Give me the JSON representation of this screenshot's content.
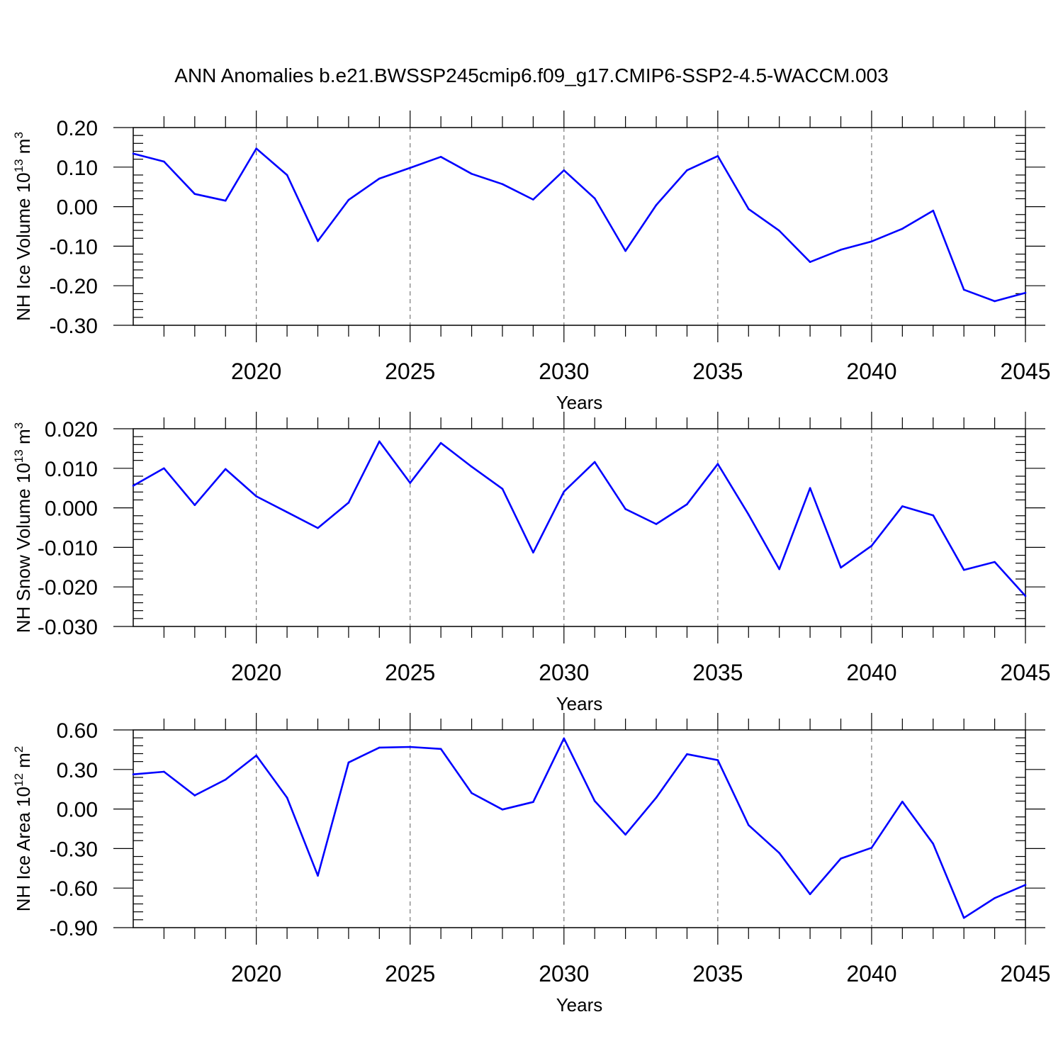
{
  "title": "ANN Anomalies b.e21.BWSSP245cmip6.f09_g17.CMIP6-SSP2-4.5-WACCM.003",
  "colors": {
    "line": "#0000ff",
    "grid": "#777777",
    "axis": "#000000"
  },
  "chart_data": [
    {
      "type": "line",
      "name": "ice-volume",
      "ylabel": "NH Ice Volume 10",
      "ylabel_exp": "13",
      "ylabel_unit": " m",
      "ylabel_unit_exp": "3",
      "xlabel": "Years",
      "xlim": [
        2016,
        2045
      ],
      "ylim": [
        -0.3,
        0.2
      ],
      "yticks": [
        0.2,
        0.1,
        0.0,
        -0.1,
        -0.2,
        -0.3
      ],
      "ytick_labels": [
        "0.20",
        "0.10",
        "0.00",
        "-0.10",
        "-0.20",
        "-0.30"
      ],
      "xticks": [
        2020,
        2025,
        2030,
        2035,
        2040,
        2045
      ],
      "xtick_labels": [
        "2020",
        "2025",
        "2030",
        "2035",
        "2040",
        "2045"
      ],
      "grid_x": true,
      "x": [
        2016,
        2017,
        2018,
        2019,
        2020,
        2021,
        2022,
        2023,
        2024,
        2025,
        2026,
        2027,
        2028,
        2029,
        2030,
        2031,
        2032,
        2033,
        2034,
        2035,
        2036,
        2037,
        2038,
        2039,
        2040,
        2041,
        2042,
        2043,
        2044,
        2045
      ],
      "values": [
        0.134,
        0.114,
        0.032,
        0.015,
        0.147,
        0.08,
        -0.087,
        0.017,
        0.071,
        0.098,
        0.126,
        0.083,
        0.057,
        0.018,
        0.092,
        0.021,
        -0.112,
        0.004,
        0.092,
        0.128,
        -0.006,
        -0.061,
        -0.14,
        -0.109,
        -0.088,
        -0.056,
        -0.01,
        -0.21,
        -0.239,
        -0.218
      ]
    },
    {
      "type": "line",
      "name": "snow-volume",
      "ylabel": "NH Snow Volume 10",
      "ylabel_exp": "13",
      "ylabel_unit": " m",
      "ylabel_unit_exp": "3",
      "xlabel": "Years",
      "xlim": [
        2016,
        2045
      ],
      "ylim": [
        -0.03,
        0.02
      ],
      "yticks": [
        0.02,
        0.01,
        0.0,
        -0.01,
        -0.02,
        -0.03
      ],
      "ytick_labels": [
        "0.020",
        "0.010",
        "0.000",
        "-0.010",
        "-0.020",
        "-0.030"
      ],
      "xticks": [
        2020,
        2025,
        2030,
        2035,
        2040,
        2045
      ],
      "xtick_labels": [
        "2020",
        "2025",
        "2030",
        "2035",
        "2040",
        "2045"
      ],
      "grid_x": true,
      "x": [
        2016,
        2017,
        2018,
        2019,
        2020,
        2021,
        2022,
        2023,
        2024,
        2025,
        2026,
        2027,
        2028,
        2029,
        2030,
        2031,
        2032,
        2033,
        2034,
        2035,
        2036,
        2037,
        2038,
        2039,
        2040,
        2041,
        2042,
        2043,
        2044,
        2045
      ],
      "values": [
        0.0056,
        0.01,
        0.0007,
        0.0098,
        0.0029,
        -0.0011,
        -0.0051,
        0.0013,
        0.0168,
        0.0063,
        0.0164,
        0.0104,
        0.0048,
        -0.0113,
        0.0041,
        0.0116,
        -0.0003,
        -0.0041,
        0.0009,
        0.0111,
        -0.0017,
        -0.0155,
        0.005,
        -0.0151,
        -0.0096,
        0.0004,
        -0.0019,
        -0.0157,
        -0.0137,
        -0.0223
      ]
    },
    {
      "type": "line",
      "name": "ice-area",
      "ylabel": "NH Ice Area 10",
      "ylabel_exp": "12",
      "ylabel_unit": " m",
      "ylabel_unit_exp": "2",
      "xlabel": "Years",
      "xlim": [
        2016,
        2045
      ],
      "ylim": [
        -0.9,
        0.6
      ],
      "yticks": [
        0.6,
        0.3,
        0.0,
        -0.3,
        -0.6,
        -0.9
      ],
      "ytick_labels": [
        "0.60",
        "0.30",
        "0.00",
        "-0.30",
        "-0.60",
        "-0.90"
      ],
      "xticks": [
        2020,
        2025,
        2030,
        2035,
        2040,
        2045
      ],
      "xtick_labels": [
        "2020",
        "2025",
        "2030",
        "2035",
        "2040",
        "2045"
      ],
      "grid_x": true,
      "x": [
        2016,
        2017,
        2018,
        2019,
        2020,
        2021,
        2022,
        2023,
        2024,
        2025,
        2026,
        2027,
        2028,
        2029,
        2030,
        2031,
        2032,
        2033,
        2034,
        2035,
        2036,
        2037,
        2038,
        2039,
        2040,
        2041,
        2042,
        2043,
        2044,
        2045
      ],
      "values": [
        0.263,
        0.283,
        0.103,
        0.223,
        0.406,
        0.086,
        -0.506,
        0.353,
        0.466,
        0.471,
        0.456,
        0.121,
        -0.004,
        0.053,
        0.536,
        0.061,
        -0.194,
        0.086,
        0.416,
        0.371,
        -0.122,
        -0.334,
        -0.646,
        -0.376,
        -0.294,
        0.056,
        -0.264,
        -0.826,
        -0.676,
        -0.576
      ]
    }
  ]
}
